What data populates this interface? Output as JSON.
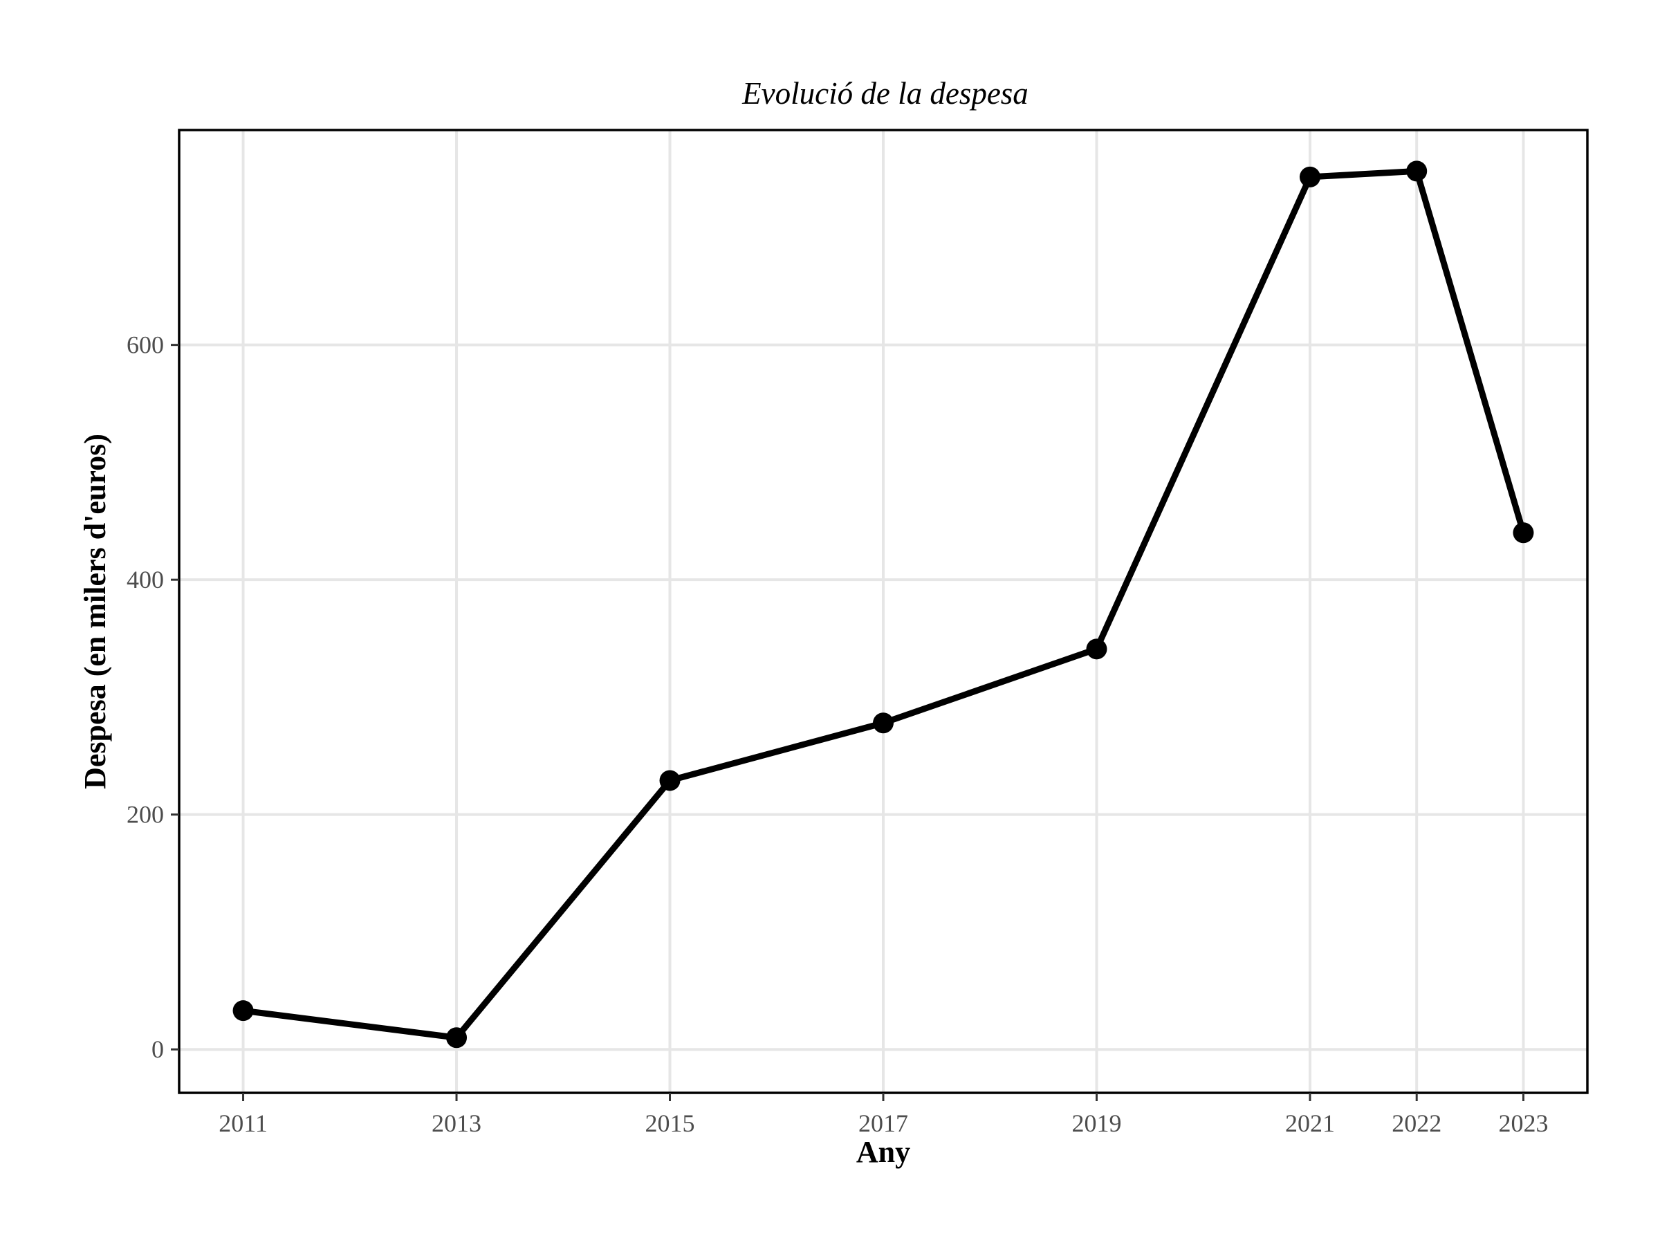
{
  "chart_data": {
    "type": "line",
    "title": "Evolució de la despesa",
    "xlabel": "Any",
    "ylabel": "Despesa (en milers d'euros)",
    "x": [
      2011,
      2013,
      2015,
      2017,
      2019,
      2021,
      2022,
      2023
    ],
    "series": [
      {
        "values": [
          33,
          10,
          229,
          278,
          341,
          743,
          748,
          440
        ]
      }
    ],
    "xlim": [
      2010.4,
      2023.6
    ],
    "ylim": [
      -37,
      783
    ],
    "x_ticks": [
      2011,
      2013,
      2015,
      2017,
      2019,
      2021,
      2022,
      2023
    ],
    "x_tick_labels": [
      "2011",
      "2013",
      "2015",
      "2017",
      "2019",
      "2021",
      "2022",
      "2023"
    ],
    "y_ticks": [
      0,
      200,
      400,
      600
    ],
    "y_tick_labels": [
      "0",
      "200",
      "400",
      "600"
    ],
    "grid": true,
    "legend": "none",
    "line_color": "#000000",
    "grid_color": "#e6e6e6"
  }
}
